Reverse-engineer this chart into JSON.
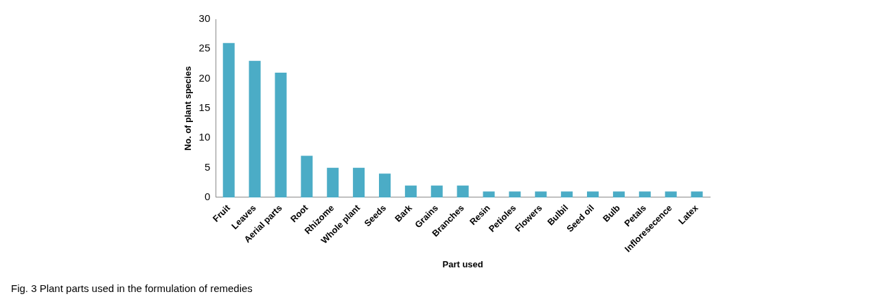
{
  "chart_data": {
    "type": "bar",
    "xlabel": "Part used",
    "ylabel": "No. of plant species",
    "categories": [
      "Fruit",
      "Leaves",
      "Aerial parts",
      "Root",
      "Rhizome",
      "Whole plant",
      "Seeds",
      "Bark",
      "Grains",
      "Branches",
      "Resin",
      "Petioles",
      "Flowers",
      "Bulbil",
      "Seed oil",
      "Bulb",
      "Petals",
      "Infloresecence",
      "Latex"
    ],
    "values": [
      26,
      23,
      21,
      7,
      5,
      5,
      4,
      2,
      2,
      2,
      1,
      1,
      1,
      1,
      1,
      1,
      1,
      1,
      1
    ],
    "color": "#4bacc6",
    "ylim": [
      0,
      30
    ],
    "yticks": [
      0,
      5,
      10,
      15,
      20,
      25,
      30
    ],
    "grid": false,
    "legend": false,
    "annotations": [
      "Fig. 3 Plant parts used in the formulation of remedies"
    ]
  }
}
